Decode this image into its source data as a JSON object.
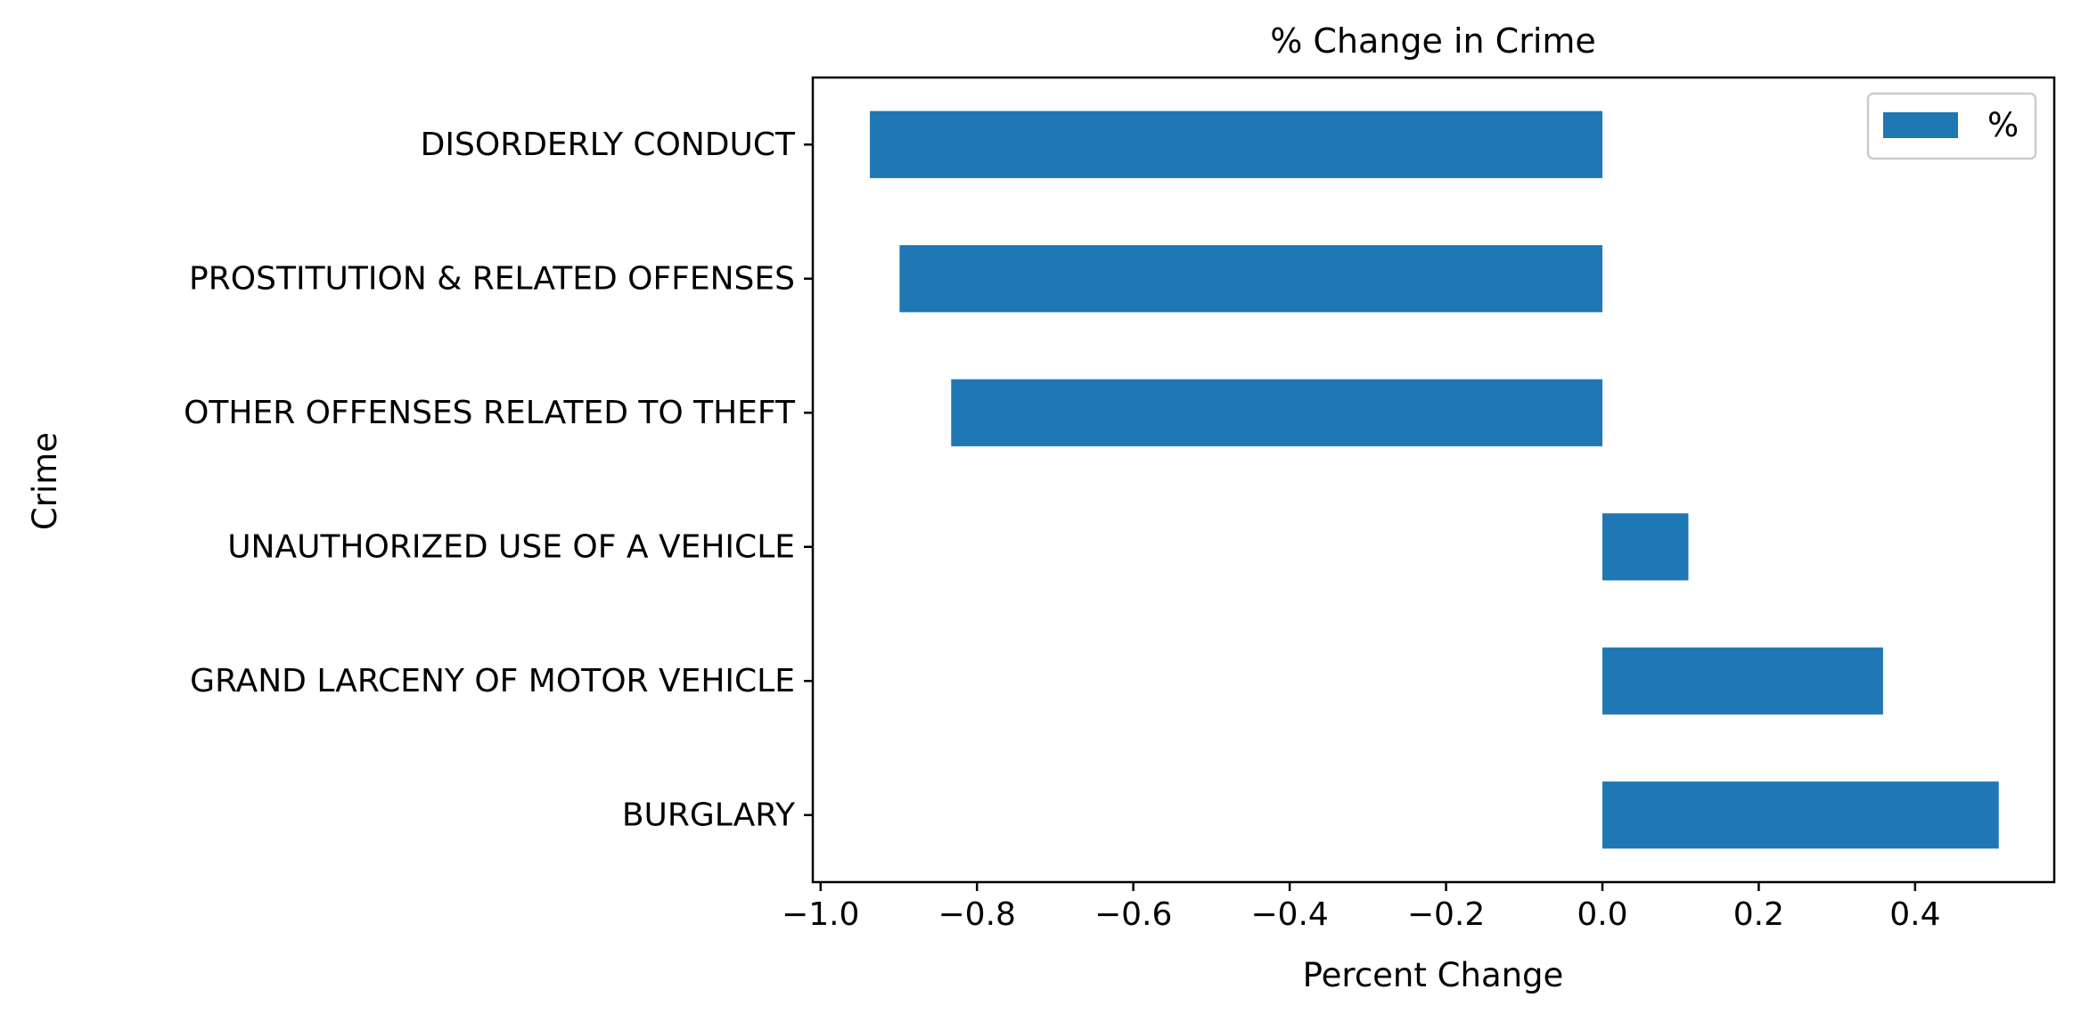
{
  "chart_data": {
    "type": "bar",
    "orientation": "horizontal",
    "title": "% Change in Crime",
    "xlabel": "Percent Change",
    "ylabel": "Crime",
    "categories": [
      "BURGLARY",
      "GRAND LARCENY OF MOTOR VEHICLE",
      "UNAUTHORIZED USE OF A VEHICLE",
      "OTHER OFFENSES RELATED TO THEFT",
      "PROSTITUTION & RELATED OFFENSES",
      "DISORDERLY CONDUCT"
    ],
    "series": [
      {
        "name": "%",
        "values": [
          0.507,
          0.359,
          0.11,
          -0.833,
          -0.899,
          -0.937
        ],
        "color": "#1f77b4"
      }
    ],
    "xlim": [
      -1.01,
      0.578
    ],
    "xticks": [
      -1.0,
      -0.8,
      -0.6,
      -0.4,
      -0.2,
      0.0,
      0.2,
      0.4
    ],
    "xtick_labels": [
      "−1.0",
      "−0.8",
      "−0.6",
      "−0.4",
      "−0.2",
      "0.0",
      "0.2",
      "0.4"
    ],
    "grid": false,
    "legend": {
      "position": "top-right",
      "entries": [
        "%"
      ]
    }
  }
}
